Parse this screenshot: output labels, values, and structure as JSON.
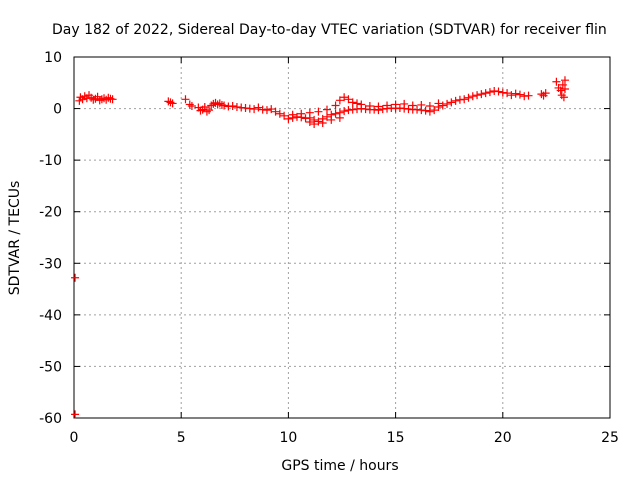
{
  "chart_data": {
    "type": "scatter",
    "title": "Day 182 of 2022, Sidereal Day-to-day VTEC variation (SDTVAR) for receiver flin",
    "xlabel": "GPS time / hours",
    "ylabel": "SDTVAR / TECUs",
    "xlim": [
      0,
      25
    ],
    "ylim": [
      -60,
      10
    ],
    "xticks": [
      "0",
      "5",
      "10",
      "15",
      "20",
      "25"
    ],
    "yticks": [
      "10",
      "0",
      "-10",
      "-20",
      "-30",
      "-40",
      "-50",
      "-60"
    ],
    "grid": true,
    "marker": "plus",
    "color": "#ff0000",
    "series": [
      {
        "points": [
          [
            0.05,
            -32.8
          ],
          [
            0.05,
            -59.3
          ],
          [
            0.25,
            1.5
          ],
          [
            0.3,
            2.2
          ],
          [
            0.4,
            1.8
          ],
          [
            0.5,
            2.4
          ],
          [
            0.6,
            2.0
          ],
          [
            0.7,
            2.6
          ],
          [
            0.8,
            2.1
          ],
          [
            0.9,
            1.7
          ],
          [
            1.0,
            1.9
          ],
          [
            1.1,
            2.3
          ],
          [
            1.2,
            1.6
          ],
          [
            1.3,
            1.8
          ],
          [
            1.4,
            2.0
          ],
          [
            1.5,
            1.7
          ],
          [
            1.6,
            2.1
          ],
          [
            1.7,
            1.9
          ],
          [
            1.8,
            1.8
          ],
          [
            4.4,
            1.4
          ],
          [
            4.5,
            1.2
          ],
          [
            4.6,
            1.0
          ],
          [
            5.2,
            1.8
          ],
          [
            5.4,
            0.8
          ],
          [
            5.5,
            0.5
          ],
          [
            5.8,
            0.2
          ],
          [
            5.9,
            -0.4
          ],
          [
            6.0,
            -0.2
          ],
          [
            6.1,
            0.3
          ],
          [
            6.2,
            -0.6
          ],
          [
            6.3,
            -0.3
          ],
          [
            6.4,
            0.6
          ],
          [
            6.5,
            0.9
          ],
          [
            6.6,
            1.1
          ],
          [
            6.7,
            0.8
          ],
          [
            6.8,
            1.0
          ],
          [
            6.9,
            0.7
          ],
          [
            7.0,
            0.6
          ],
          [
            7.2,
            0.4
          ],
          [
            7.4,
            0.5
          ],
          [
            7.6,
            0.3
          ],
          [
            7.8,
            0.2
          ],
          [
            8.0,
            0.1
          ],
          [
            8.2,
            0.0
          ],
          [
            8.4,
            -0.1
          ],
          [
            8.6,
            0.2
          ],
          [
            8.8,
            -0.2
          ],
          [
            9.0,
            -0.3
          ],
          [
            9.2,
            -0.1
          ],
          [
            9.4,
            -0.6
          ],
          [
            9.6,
            -1.0
          ],
          [
            9.8,
            -1.4
          ],
          [
            10.0,
            -2.0
          ],
          [
            10.2,
            -1.8
          ],
          [
            10.4,
            -1.6
          ],
          [
            10.6,
            -1.7
          ],
          [
            10.8,
            -1.9
          ],
          [
            11.0,
            -1.8
          ],
          [
            11.2,
            -2.2
          ],
          [
            11.4,
            -2.5
          ],
          [
            11.6,
            -2.0
          ],
          [
            11.8,
            -1.6
          ],
          [
            12.0,
            -1.2
          ],
          [
            12.2,
            -1.0
          ],
          [
            12.4,
            -0.8
          ],
          [
            12.6,
            -0.5
          ],
          [
            12.8,
            -0.3
          ],
          [
            13.0,
            -0.2
          ],
          [
            13.2,
            -0.1
          ],
          [
            13.4,
            0.0
          ],
          [
            13.6,
            -0.1
          ],
          [
            13.8,
            -0.2
          ],
          [
            14.0,
            -0.2
          ],
          [
            14.2,
            -0.3
          ],
          [
            14.4,
            -0.1
          ],
          [
            14.6,
            0.0
          ],
          [
            14.8,
            0.1
          ],
          [
            15.0,
            0.0
          ],
          [
            15.2,
            0.1
          ],
          [
            15.4,
            0.0
          ],
          [
            15.6,
            -0.1
          ],
          [
            15.8,
            -0.2
          ],
          [
            16.0,
            -0.2
          ],
          [
            16.2,
            -0.3
          ],
          [
            16.4,
            -0.4
          ],
          [
            16.6,
            -0.6
          ],
          [
            16.8,
            -0.3
          ],
          [
            17.0,
            0.3
          ],
          [
            17.2,
            0.6
          ],
          [
            17.4,
            0.9
          ],
          [
            17.6,
            1.2
          ],
          [
            17.8,
            1.5
          ],
          [
            18.0,
            1.7
          ],
          [
            18.2,
            1.8
          ],
          [
            18.4,
            2.1
          ],
          [
            18.6,
            2.4
          ],
          [
            18.8,
            2.6
          ],
          [
            19.0,
            2.8
          ],
          [
            19.2,
            3.0
          ],
          [
            19.4,
            3.2
          ],
          [
            19.6,
            3.4
          ],
          [
            19.8,
            3.3
          ],
          [
            20.0,
            3.1
          ],
          [
            20.2,
            3.0
          ],
          [
            10.2,
            -1.2
          ],
          [
            10.6,
            -1.0
          ],
          [
            11.0,
            -0.8
          ],
          [
            11.4,
            -0.6
          ],
          [
            11.8,
            -0.2
          ],
          [
            12.2,
            0.6
          ],
          [
            12.4,
            1.6
          ],
          [
            12.6,
            2.2
          ],
          [
            12.8,
            1.8
          ],
          [
            13.0,
            1.2
          ],
          [
            13.2,
            1.0
          ],
          [
            13.4,
            0.8
          ],
          [
            13.8,
            0.5
          ],
          [
            14.2,
            0.4
          ],
          [
            14.6,
            0.6
          ],
          [
            15.0,
            0.8
          ],
          [
            15.4,
            0.9
          ],
          [
            15.8,
            0.6
          ],
          [
            16.2,
            0.7
          ],
          [
            16.6,
            0.5
          ],
          [
            17.0,
            1.0
          ],
          [
            11.0,
            -2.6
          ],
          [
            11.2,
            -3.0
          ],
          [
            11.6,
            -2.8
          ],
          [
            12.0,
            -2.2
          ],
          [
            12.4,
            -1.8
          ],
          [
            20.4,
            2.6
          ],
          [
            20.6,
            2.9
          ],
          [
            20.8,
            2.7
          ],
          [
            21.0,
            2.4
          ],
          [
            21.2,
            2.5
          ],
          [
            21.8,
            2.8
          ],
          [
            21.9,
            2.5
          ],
          [
            22.0,
            3.0
          ],
          [
            22.5,
            5.2
          ],
          [
            22.6,
            4.0
          ],
          [
            22.7,
            3.5
          ],
          [
            22.75,
            2.6
          ],
          [
            22.8,
            4.6
          ],
          [
            22.85,
            2.2
          ],
          [
            22.9,
            3.8
          ],
          [
            22.9,
            5.5
          ]
        ]
      }
    ]
  }
}
